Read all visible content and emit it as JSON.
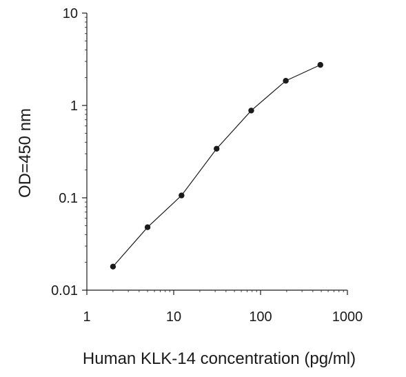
{
  "chart_data": {
    "type": "line",
    "title": "",
    "xlabel": "Human KLK-14 concentration (pg/ml)",
    "ylabel": "OD=450 nm",
    "x_scale": "log",
    "y_scale": "log",
    "xlim": [
      1,
      1000
    ],
    "ylim": [
      0.01,
      10
    ],
    "x_ticks": [
      1,
      10,
      100,
      1000
    ],
    "x_tick_labels": [
      "1",
      "10",
      "100",
      "1000"
    ],
    "y_ticks": [
      0.01,
      0.1,
      1,
      10
    ],
    "y_tick_labels": [
      "0.01",
      "0.1",
      "1",
      "10"
    ],
    "grid": false,
    "legend": "none",
    "line_color": "#1a1a1a",
    "marker": "circle",
    "series": [
      {
        "x": [
          2,
          5,
          12.3,
          31.2,
          78.1,
          195.3,
          488.3
        ],
        "y": [
          0.018,
          0.048,
          0.106,
          0.34,
          0.88,
          1.85,
          2.75
        ]
      }
    ]
  }
}
